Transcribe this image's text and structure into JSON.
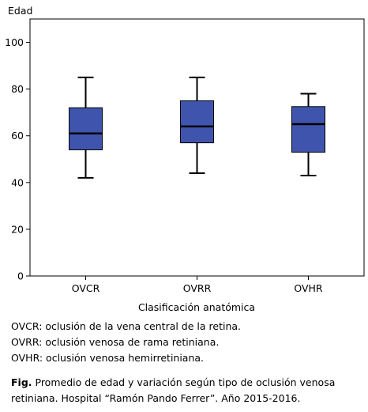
{
  "chart_data": {
    "type": "box",
    "ylabel": "Edad",
    "xlabel": "Clasificación anatómica",
    "ylim": [
      0,
      110
    ],
    "yticks": [
      0,
      20,
      40,
      60,
      80,
      100
    ],
    "categories": [
      "OVCR",
      "OVRR",
      "OVHR"
    ],
    "boxes": [
      {
        "category": "OVCR",
        "min": 42,
        "q1": 54,
        "median": 61,
        "q3": 72,
        "max": 85
      },
      {
        "category": "OVRR",
        "min": 44,
        "q1": 57,
        "median": 64,
        "q3": 75,
        "max": 85
      },
      {
        "category": "OVHR",
        "min": 43,
        "q1": 53,
        "median": 65,
        "q3": 72.5,
        "max": 78
      }
    ],
    "box_color": "#3f55ad",
    "grid": false
  },
  "legend": [
    "OVCR: oclusión de la vena central de la retina.",
    "OVRR: oclusión venosa de rama retiniana.",
    "OVHR: oclusión venosa hemirretiniana."
  ],
  "caption": {
    "label": "Fig.",
    "text": " Promedio de edad y variación según tipo de oclusión venosa retiniana. Hospital “Ramón Pando Ferrer”. Año 2015-2016."
  }
}
